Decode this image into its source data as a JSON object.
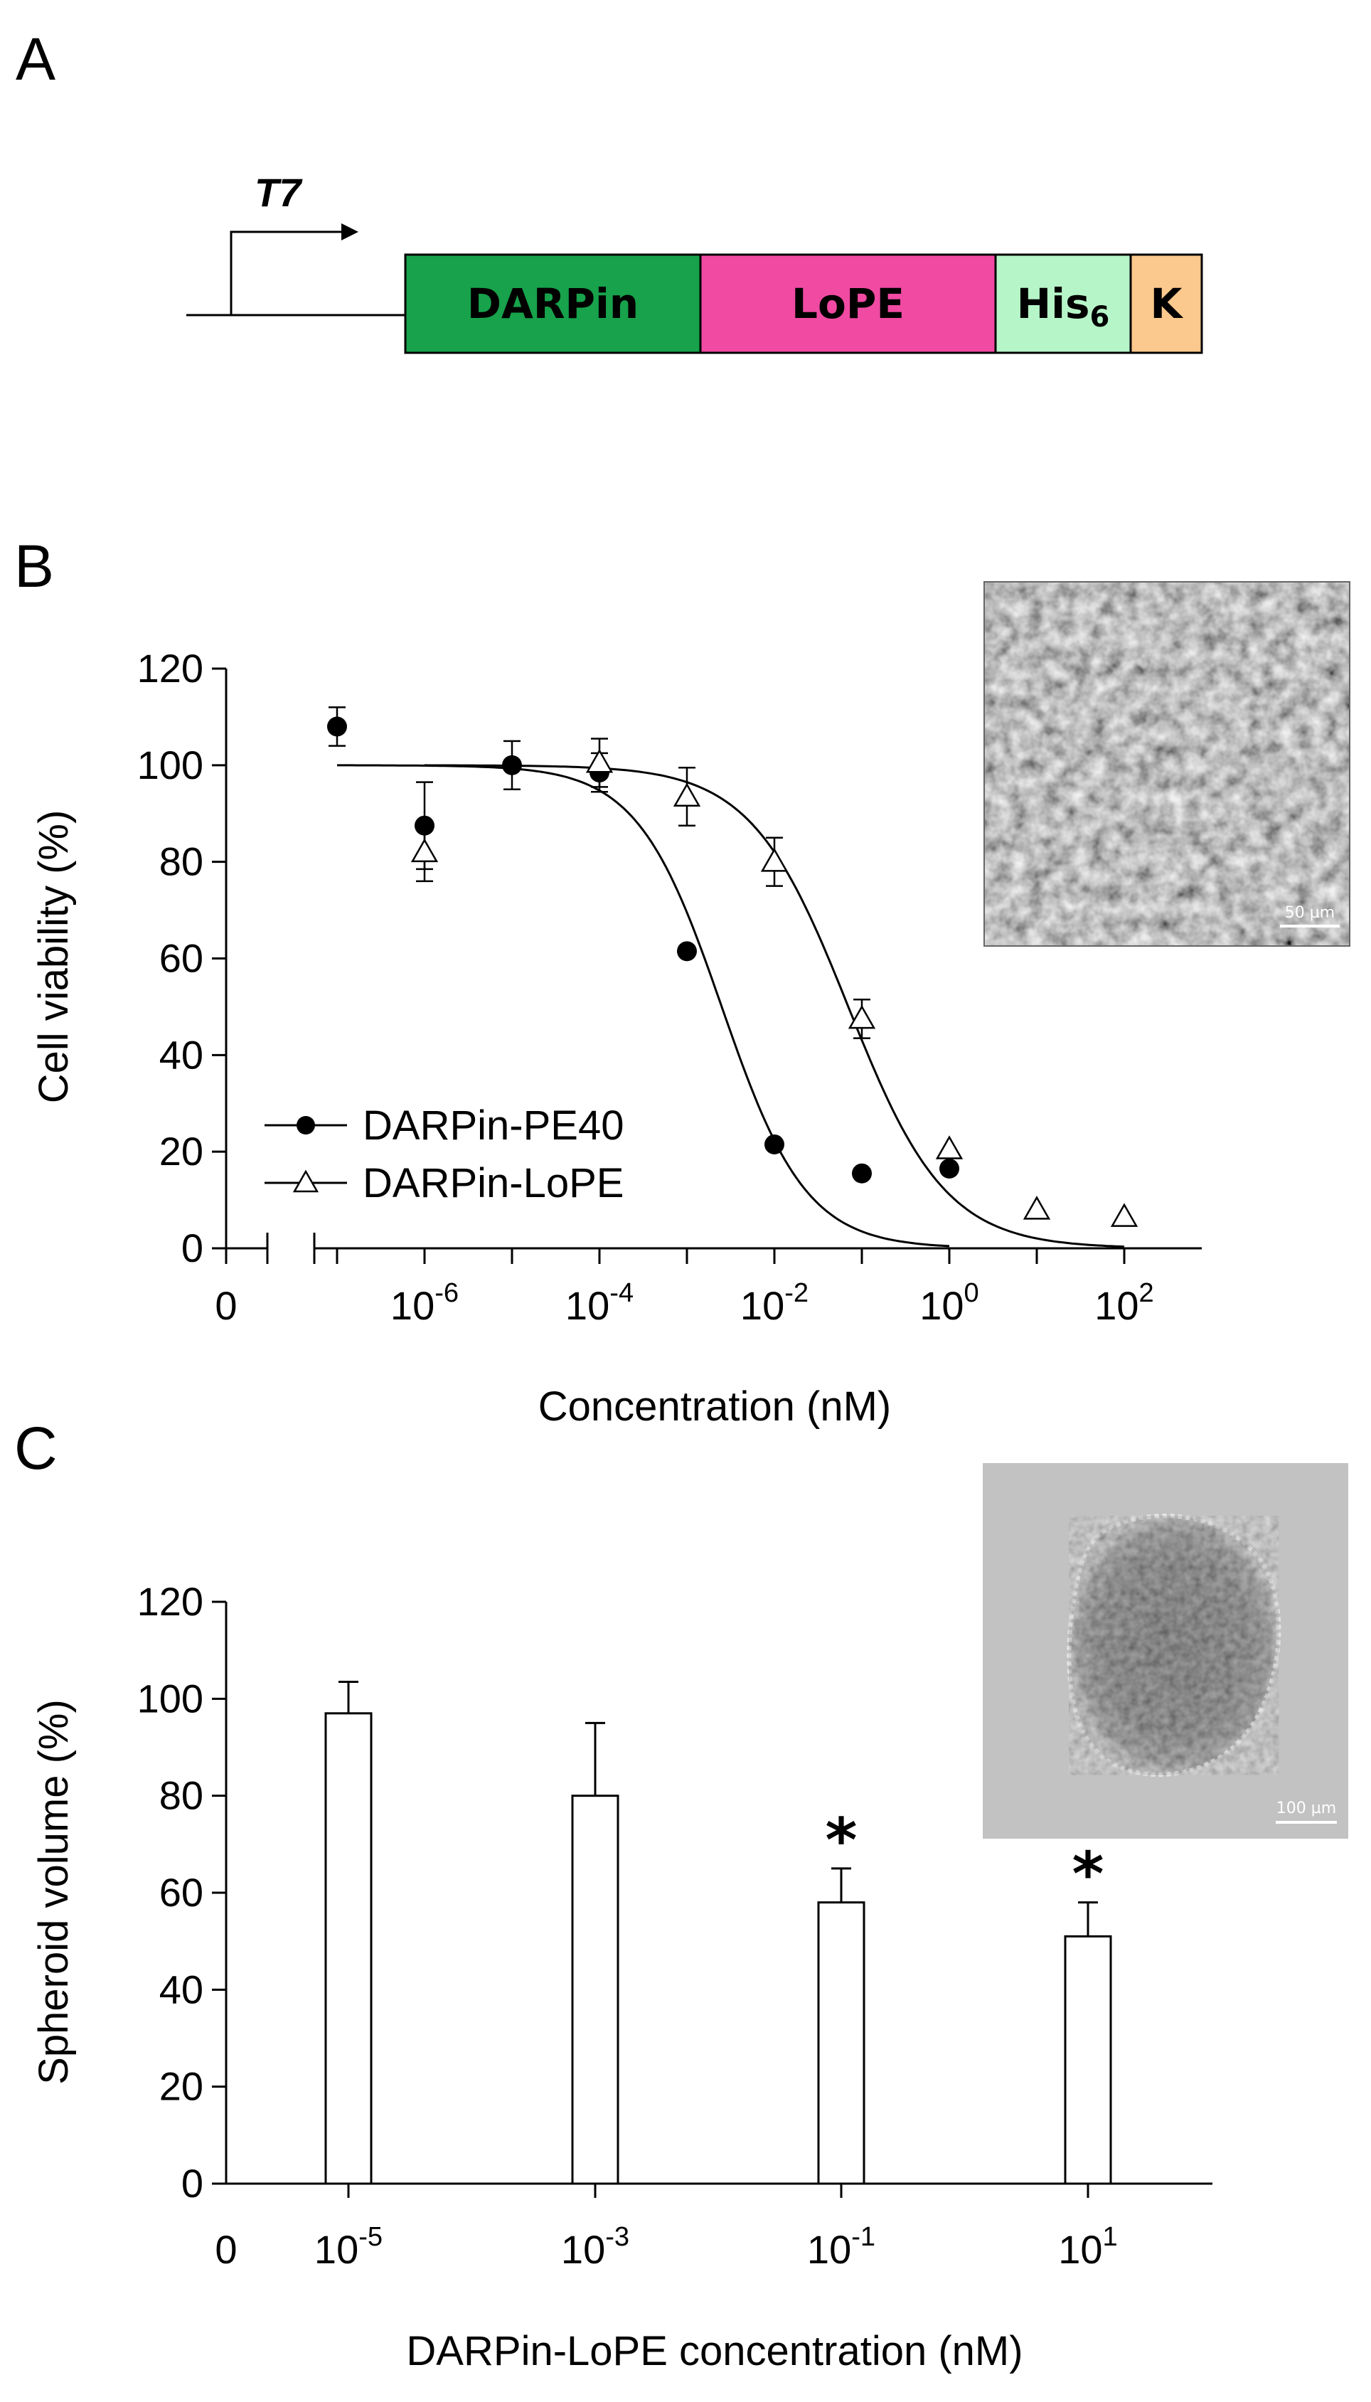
{
  "panels": {
    "a": {
      "letter": "A"
    },
    "b": {
      "letter": "B"
    },
    "c": {
      "letter": "C"
    }
  },
  "construct": {
    "promoter": "T7",
    "segments": [
      {
        "label": "DARPin",
        "sub": "",
        "color": "#17a24b"
      },
      {
        "label": "LoPE",
        "sub": "",
        "color": "#f04aa3"
      },
      {
        "label": "His",
        "sub": "6",
        "color": "#b6f5c8"
      },
      {
        "label": "K",
        "sub": "",
        "color": "#fbc88d"
      }
    ]
  },
  "chart_data": [
    {
      "type": "scatter",
      "x_scale": "log",
      "xlabel": "Concentration (nM)",
      "ylabel": "Cell viability (%)",
      "ylim": [
        0,
        120
      ],
      "yticks": [
        "0",
        "20",
        "40",
        "60",
        "80",
        "100",
        "120"
      ],
      "xticks": [
        {
          "base": "0",
          "exp": ""
        },
        {
          "base": "10",
          "exp": "-6"
        },
        {
          "base": "10",
          "exp": "-4"
        },
        {
          "base": "10",
          "exp": "-2"
        },
        {
          "base": "10",
          "exp": "0"
        },
        {
          "base": "10",
          "exp": "2"
        }
      ],
      "axis_break": true,
      "legend_position": "lower-left",
      "series": [
        {
          "name": "DARPin-PE40",
          "marker": "filled-circle",
          "x": [
            1e-07,
            1e-06,
            1e-05,
            0.0001,
            0.001,
            0.01,
            0.1,
            1
          ],
          "y": [
            108,
            87.5,
            100,
            98.5,
            61.5,
            21.5,
            15.5,
            16.5
          ],
          "err": [
            4,
            9,
            5,
            4,
            0,
            0,
            0,
            0
          ],
          "fit": {
            "top": 100,
            "bottom": 0,
            "ic50": 0.0025,
            "hill": 0.9
          }
        },
        {
          "name": "DARPin-LoPE",
          "marker": "open-triangle",
          "x": [
            1e-06,
            0.0001,
            0.001,
            0.01,
            0.1,
            1,
            10,
            100
          ],
          "y": [
            82,
            100.5,
            93.5,
            80,
            47.5,
            20.5,
            8,
            6.5
          ],
          "err": [
            6,
            5,
            6,
            5,
            4,
            0,
            0,
            0
          ],
          "fit": {
            "top": 100,
            "bottom": 0,
            "ic50": 0.07,
            "hill": 0.78
          }
        }
      ],
      "inset": {
        "scale_label": "50 µm"
      }
    },
    {
      "type": "bar",
      "xlabel": "DARPin-LoPE concentration (nM)",
      "ylabel": "Spheroid volume (%)",
      "ylim": [
        0,
        120
      ],
      "yticks": [
        "0",
        "20",
        "40",
        "60",
        "80",
        "100",
        "120"
      ],
      "zero_label": "0",
      "categories": [
        {
          "base": "10",
          "exp": "-5"
        },
        {
          "base": "10",
          "exp": "-3"
        },
        {
          "base": "10",
          "exp": "-1"
        },
        {
          "base": "10",
          "exp": "1"
        }
      ],
      "values": [
        97,
        80,
        58,
        51
      ],
      "err": [
        6.5,
        15,
        7,
        7
      ],
      "significance": [
        "",
        "",
        "*",
        "*"
      ],
      "inset": {
        "scale_label": "100 µm"
      }
    }
  ]
}
